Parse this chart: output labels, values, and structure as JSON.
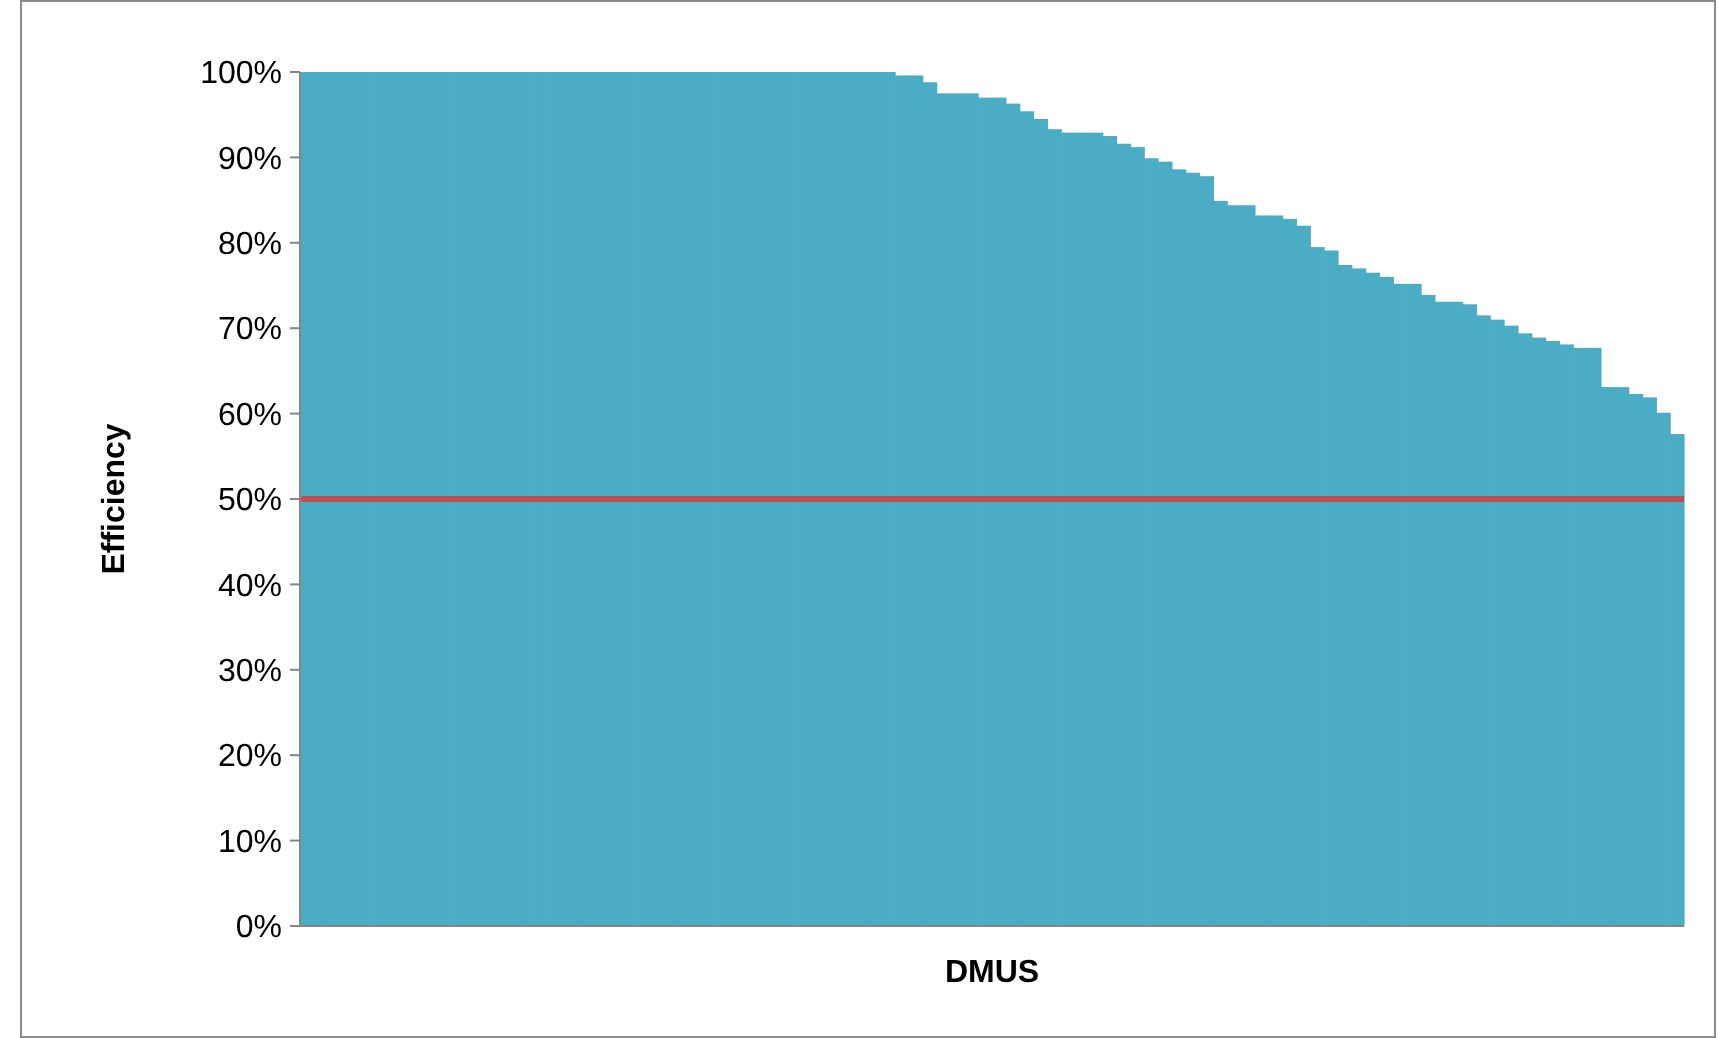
{
  "chart_data": {
    "type": "bar",
    "xlabel": "DMUS",
    "ylabel": "Efficiency",
    "categories": [
      null,
      null,
      null,
      null,
      null,
      null,
      null,
      null,
      null,
      null,
      null,
      null,
      null,
      null,
      null,
      null,
      null,
      null,
      null,
      null,
      null,
      null,
      null,
      null,
      null,
      null,
      null,
      null,
      null,
      null,
      null,
      null,
      null,
      null,
      null,
      null,
      null,
      null,
      null,
      null,
      null,
      null,
      null,
      null,
      null,
      null,
      null,
      null,
      null,
      null,
      null,
      null,
      null,
      null,
      null,
      null,
      null,
      null,
      null,
      null,
      null,
      null,
      null,
      null,
      null,
      null,
      null,
      null,
      null,
      null,
      null,
      null,
      null,
      null,
      null,
      null,
      null,
      null,
      null,
      null,
      null,
      null,
      null,
      null,
      null,
      null,
      null,
      null,
      null,
      null,
      null,
      null,
      null,
      null,
      null,
      null,
      null,
      null,
      null,
      null
    ],
    "values": [
      100,
      100,
      100,
      100,
      100,
      100,
      100,
      100,
      100,
      100,
      100,
      100,
      100,
      100,
      100,
      100,
      100,
      100,
      100,
      100,
      100,
      100,
      100,
      100,
      100,
      100,
      100,
      100,
      100,
      100,
      100,
      100,
      100,
      100,
      100,
      100,
      100,
      100,
      100,
      100,
      100,
      100,
      100,
      99.6,
      99.6,
      98.8,
      97.5,
      97.5,
      97.5,
      97,
      97,
      96.3,
      95.4,
      94.5,
      93.3,
      92.9,
      92.9,
      92.9,
      92.5,
      91.6,
      91.2,
      89.9,
      89.5,
      88.6,
      88.2,
      87.8,
      84.9,
      84.4,
      84.4,
      83.2,
      83.2,
      82.8,
      82,
      79.5,
      79.1,
      77.4,
      77,
      76.5,
      76,
      75.2,
      75.2,
      73.9,
      73.1,
      73.1,
      72.8,
      71.5,
      71,
      70.3,
      69.4,
      68.9,
      68.5,
      68.1,
      67.7,
      67.7,
      63.1,
      63.1,
      62.3,
      61.9,
      60.1,
      57.6
    ],
    "color": "#4bacc6",
    "ylim": [
      0,
      100
    ],
    "yticks": [
      {
        "value": 0,
        "label": "0%"
      },
      {
        "value": 10,
        "label": "10%"
      },
      {
        "value": 20,
        "label": "20%"
      },
      {
        "value": 30,
        "label": "30%"
      },
      {
        "value": 40,
        "label": "40%"
      },
      {
        "value": 50,
        "label": "50%"
      },
      {
        "value": 60,
        "label": "60%"
      },
      {
        "value": 70,
        "label": "70%"
      },
      {
        "value": 80,
        "label": "80%"
      },
      {
        "value": 90,
        "label": "90%"
      },
      {
        "value": 100,
        "label": "100%"
      }
    ],
    "ref_lines": [
      {
        "axis": "y",
        "value": 50,
        "color": "#c0504d"
      }
    ],
    "grid": false
  }
}
